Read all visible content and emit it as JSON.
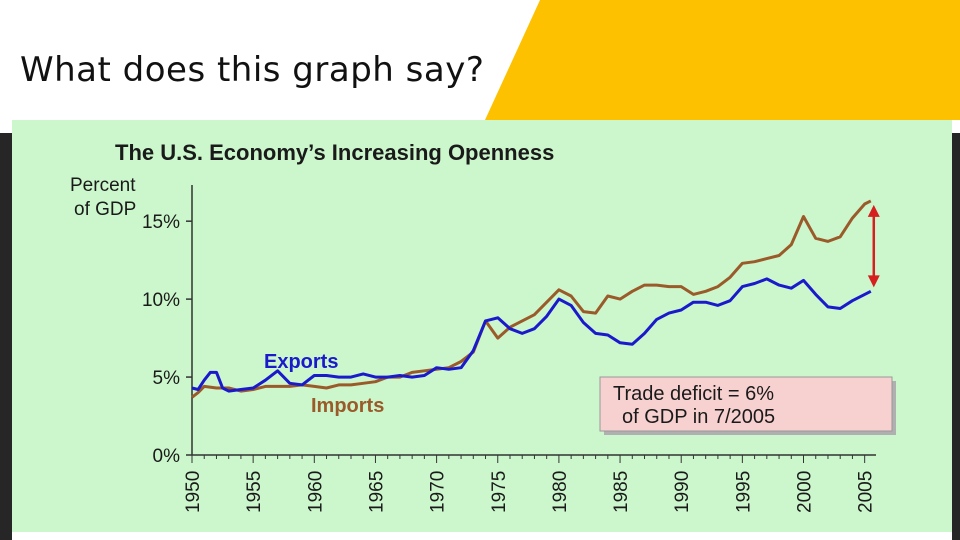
{
  "slide": {
    "title": "What does this graph say?"
  },
  "colors": {
    "accent": "#fdc100",
    "panel": "#ccf7cc",
    "exports": "#1a1acc",
    "imports": "#9b5a2a",
    "arrow": "#d62020",
    "callout": "#f7d0d0"
  },
  "chart_data": {
    "type": "line",
    "title": "The U.S. Economy’s Increasing Openness",
    "ylabel_line1": "Percent",
    "ylabel_line2": "of GDP",
    "ylim": [
      0,
      17
    ],
    "xlim": [
      1950,
      2005.6
    ],
    "yticks": [
      0,
      5,
      10,
      15
    ],
    "ytick_labels": [
      "0%",
      "5%",
      "10%",
      "15%"
    ],
    "xticks": [
      1950,
      1955,
      1960,
      1965,
      1970,
      1975,
      1980,
      1985,
      1990,
      1995,
      2000,
      2005
    ],
    "series": [
      {
        "name": "Exports",
        "x": [
          1950,
          1950.5,
          1951,
          1951.5,
          1952,
          1952.5,
          1953,
          1954,
          1955,
          1956,
          1957,
          1958,
          1959,
          1960,
          1961,
          1962,
          1963,
          1964,
          1965,
          1966,
          1967,
          1968,
          1969,
          1970,
          1971,
          1972,
          1973,
          1974,
          1975,
          1976,
          1977,
          1978,
          1979,
          1980,
          1981,
          1982,
          1983,
          1984,
          1985,
          1986,
          1987,
          1988,
          1989,
          1990,
          1991,
          1992,
          1993,
          1994,
          1995,
          1996,
          1997,
          1998,
          1999,
          2000,
          2001,
          2002,
          2003,
          2004,
          2005,
          2005.5
        ],
        "values": [
          4.3,
          4.2,
          4.8,
          5.3,
          5.3,
          4.3,
          4.1,
          4.2,
          4.3,
          4.8,
          5.4,
          4.6,
          4.5,
          5.1,
          5.1,
          5.0,
          5.0,
          5.2,
          5.0,
          5.0,
          5.1,
          5.0,
          5.1,
          5.6,
          5.5,
          5.6,
          6.7,
          8.6,
          8.8,
          8.1,
          7.8,
          8.1,
          8.9,
          10.0,
          9.6,
          8.5,
          7.8,
          7.7,
          7.2,
          7.1,
          7.8,
          8.7,
          9.1,
          9.3,
          9.8,
          9.8,
          9.6,
          9.9,
          10.8,
          11.0,
          11.3,
          10.9,
          10.7,
          11.2,
          10.3,
          9.5,
          9.4,
          9.9,
          10.3,
          10.5
        ]
      },
      {
        "name": "Imports",
        "x": [
          1950,
          1950.5,
          1951,
          1952,
          1953,
          1954,
          1955,
          1956,
          1957,
          1958,
          1959,
          1960,
          1961,
          1962,
          1963,
          1964,
          1965,
          1966,
          1967,
          1968,
          1969,
          1970,
          1971,
          1972,
          1973,
          1974,
          1975,
          1976,
          1977,
          1978,
          1979,
          1980,
          1981,
          1982,
          1983,
          1984,
          1985,
          1986,
          1987,
          1988,
          1989,
          1990,
          1991,
          1992,
          1993,
          1994,
          1995,
          1996,
          1997,
          1998,
          1999,
          2000,
          2001,
          2002,
          2003,
          2004,
          2005,
          2005.5
        ],
        "values": [
          3.7,
          4.0,
          4.4,
          4.3,
          4.3,
          4.1,
          4.2,
          4.4,
          4.4,
          4.4,
          4.5,
          4.4,
          4.3,
          4.5,
          4.5,
          4.6,
          4.7,
          5.0,
          5.0,
          5.3,
          5.4,
          5.5,
          5.6,
          6.0,
          6.6,
          8.6,
          7.5,
          8.2,
          8.6,
          9.0,
          9.8,
          10.6,
          10.2,
          9.2,
          9.1,
          10.2,
          10.0,
          10.5,
          10.9,
          10.9,
          10.8,
          10.8,
          10.3,
          10.5,
          10.8,
          11.4,
          12.3,
          12.4,
          12.6,
          12.8,
          13.5,
          15.3,
          13.9,
          13.7,
          14.0,
          15.2,
          16.1,
          16.3
        ]
      }
    ],
    "annotations": {
      "exports_label": "Exports",
      "imports_label": "Imports",
      "callout_line1": "Trade deficit = 6%",
      "callout_line2": "of GDP in 7/2005"
    }
  }
}
